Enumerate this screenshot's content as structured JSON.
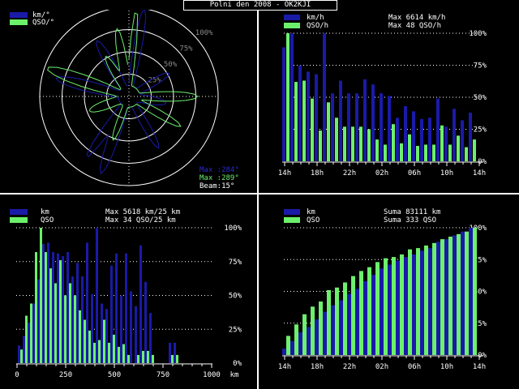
{
  "app_title": "Polni den 2008 - OK2KJI",
  "colors": {
    "blue": "#1a1aa8",
    "green": "#6cf06c",
    "dots": "#ffffff",
    "text": "#ffffff",
    "green_text": "#6cf06c",
    "blue_text": "#2a2ad0"
  },
  "polar": {
    "legend_km": "km/°",
    "legend_qso": "QSO/°",
    "ring_labels": [
      "25%",
      "50%",
      "75%",
      "100%"
    ],
    "max_km": "Max :284°",
    "max_qso": "Max :289°",
    "beam": "Beam:15°"
  },
  "hourly": {
    "legend_km": "km/h",
    "legend_qso": "QSO/h",
    "max_km": "Max  6614 km/h",
    "max_qso": "Max    48 QSO/h",
    "y_ticks": [
      "0%",
      "25%",
      "50%",
      "75%",
      "100%"
    ],
    "x_ticks": [
      "14h",
      "18h",
      "22h",
      "02h",
      "06h",
      "10h",
      "14h"
    ],
    "chart_data": {
      "type": "bar",
      "x": [
        "14h",
        "15h",
        "16h",
        "17h",
        "18h",
        "19h",
        "20h",
        "21h",
        "22h",
        "23h",
        "00h",
        "01h",
        "02h",
        "03h",
        "04h",
        "05h",
        "06h",
        "07h",
        "08h",
        "09h",
        "10h",
        "11h",
        "12h",
        "13h"
      ],
      "series": [
        {
          "name": "km/h",
          "values": [
            89,
            100,
            75,
            70,
            68,
            100,
            53,
            63,
            53,
            53,
            64,
            60,
            53,
            51,
            34,
            43,
            39,
            33,
            34,
            49,
            27,
            41,
            32,
            38
          ]
        },
        {
          "name": "QSO/h",
          "values": [
            100,
            62,
            63,
            49,
            24,
            46,
            34,
            27,
            27,
            27,
            25,
            17,
            13,
            29,
            14,
            21,
            12,
            13,
            13,
            28,
            13,
            20,
            11,
            17
          ]
        }
      ],
      "ylim": [
        0,
        100
      ]
    }
  },
  "distance": {
    "legend_km": "km",
    "legend_qso": "QSO",
    "max_km": "Max  5618 km/25 km",
    "max_qso": "Max    34 QSO/25 km",
    "y_ticks": [
      "0%",
      "25%",
      "50%",
      "75%",
      "100%"
    ],
    "x_ticks": [
      "0",
      "250",
      "500",
      "750",
      "1000"
    ],
    "x_unit": "km",
    "chart_data": {
      "type": "bar",
      "x": [
        12.5,
        37.5,
        62.5,
        87.5,
        112.5,
        137.5,
        162.5,
        187.5,
        212.5,
        237.5,
        262.5,
        287.5,
        312.5,
        337.5,
        362.5,
        387.5,
        412.5,
        437.5,
        462.5,
        487.5,
        512.5,
        537.5,
        562.5,
        587.5,
        612.5,
        637.5,
        662.5,
        687.5,
        712.5,
        737.5,
        762.5,
        787.5,
        812.5,
        837.5
      ],
      "series": [
        {
          "name": "km",
          "values": [
            13,
            20,
            30,
            44,
            62,
            88,
            89,
            82,
            81,
            79,
            82,
            64,
            74,
            64,
            89,
            51,
            100,
            44,
            40,
            72,
            81,
            50,
            81,
            53,
            42,
            87,
            60,
            37,
            0,
            0,
            0,
            15,
            15,
            0
          ]
        },
        {
          "name": "QSO",
          "values": [
            10,
            35,
            44,
            82,
            100,
            82,
            70,
            59,
            76,
            50,
            59,
            50,
            39,
            32,
            24,
            15,
            17,
            32,
            15,
            21,
            12,
            14,
            6,
            0,
            6,
            9,
            9,
            6,
            0,
            0,
            0,
            6,
            6,
            0
          ]
        }
      ],
      "xlim": [
        0,
        1000
      ],
      "ylim": [
        0,
        100
      ]
    }
  },
  "cumulative": {
    "legend_km": "km",
    "legend_qso": "QSO",
    "sum_km": "Suma  83111 km",
    "sum_qso": "Suma   333 QSO",
    "y_ticks": [
      "0%",
      "25%",
      "50%",
      "75%",
      "100%"
    ],
    "x_ticks": [
      "14h",
      "18h",
      "22h",
      "02h",
      "06h",
      "10h",
      "14h"
    ],
    "chart_data": {
      "type": "bar",
      "x": [
        "14h",
        "15h",
        "16h",
        "17h",
        "18h",
        "19h",
        "20h",
        "21h",
        "22h",
        "23h",
        "00h",
        "01h",
        "02h",
        "03h",
        "04h",
        "05h",
        "06h",
        "07h",
        "08h",
        "09h",
        "10h",
        "11h",
        "12h",
        "13h"
      ],
      "series": [
        {
          "name": "km",
          "values": [
            5,
            11,
            18,
            22,
            28,
            34,
            39,
            43,
            48,
            52,
            58,
            63,
            68,
            71,
            74,
            77,
            79,
            82,
            84,
            89,
            91,
            94,
            97,
            100
          ]
        },
        {
          "name": "QSO",
          "values": [
            15,
            24,
            32,
            38,
            42,
            51,
            53,
            57,
            62,
            66,
            69,
            73,
            76,
            77,
            79,
            83,
            84,
            86,
            88,
            91,
            93,
            95,
            97,
            100
          ]
        }
      ],
      "ylim": [
        0,
        100
      ]
    }
  }
}
